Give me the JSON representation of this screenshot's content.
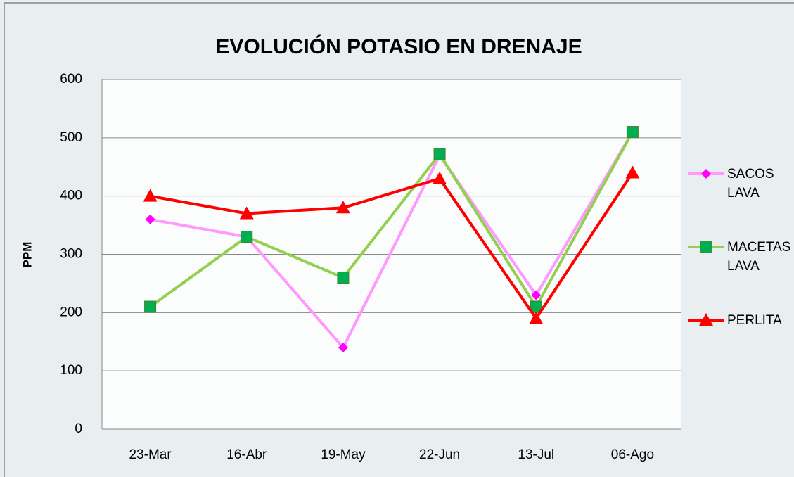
{
  "chart_data": {
    "type": "line",
    "title": "EVOLUCIÓN POTASIO EN DRENAJE",
    "y_label": "PPM",
    "categories": [
      "23-Mar",
      "16-Abr",
      "19-May",
      "22-Jun",
      "13-Jul",
      "06-Ago"
    ],
    "series": [
      {
        "name": "SACOS LAVA",
        "color": "#ff99ff",
        "marker_color": "#ff00ff",
        "marker": "diamond",
        "values": [
          360,
          330,
          140,
          470,
          230,
          510
        ]
      },
      {
        "name": "MACETAS LAVA",
        "color": "#92d050",
        "marker_color": "#00b050",
        "marker": "square",
        "values": [
          210,
          330,
          260,
          472,
          210,
          510
        ]
      },
      {
        "name": "PERLITA",
        "color": "#ff0000",
        "marker_color": "#ff0000",
        "marker": "triangle",
        "values": [
          400,
          370,
          380,
          430,
          190,
          440
        ]
      }
    ],
    "ylim": [
      0,
      600
    ],
    "yticks": [
      0,
      100,
      200,
      300,
      400,
      500,
      600
    ],
    "grid": true,
    "legend": "right"
  }
}
